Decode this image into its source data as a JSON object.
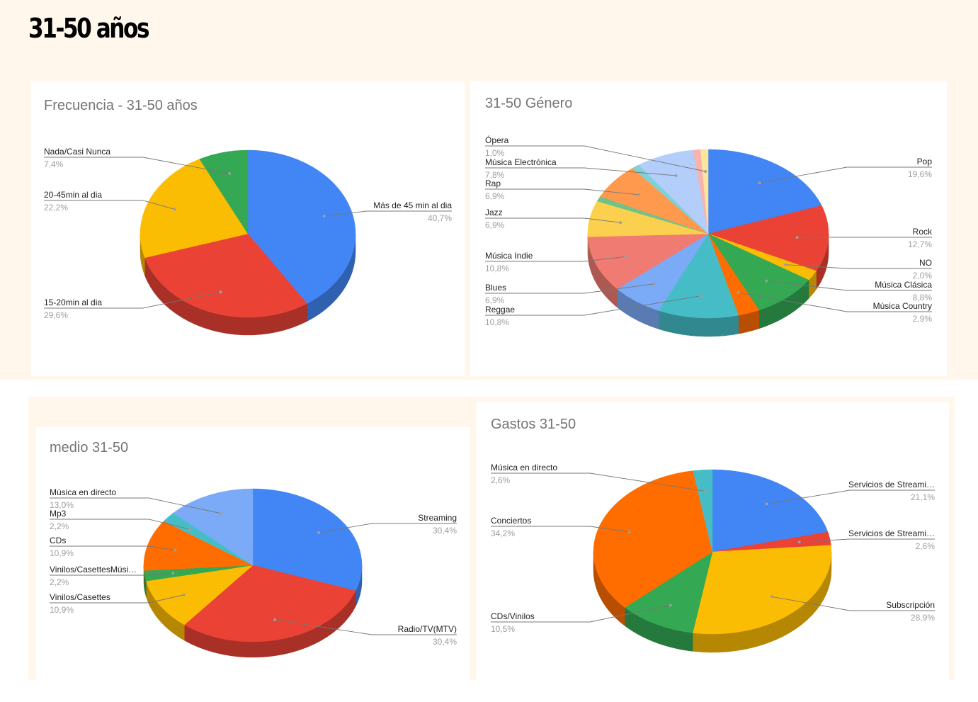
{
  "page": {
    "title": "31-50 años"
  },
  "chart_data": [
    {
      "id": "frecuencia",
      "type": "pie",
      "title": "Frecuencia - 31-50 años",
      "slices": [
        {
          "label": "Más de 45 min al dia",
          "value": 40.7,
          "pct_text": "40,7%",
          "color": "#4285f4",
          "side": "right"
        },
        {
          "label": "15-20min al dia",
          "value": 29.6,
          "pct_text": "29,6%",
          "color": "#ea4335",
          "side": "left"
        },
        {
          "label": "20-45min al dia",
          "value": 22.2,
          "pct_text": "22,2%",
          "color": "#fbbc04",
          "side": "left"
        },
        {
          "label": "Nada/Casi Nunca",
          "value": 7.4,
          "pct_text": "7,4%",
          "color": "#34a853",
          "side": "left"
        }
      ]
    },
    {
      "id": "genero",
      "type": "pie",
      "title": "31-50 Género",
      "slices": [
        {
          "label": "Pop",
          "value": 19.6,
          "pct_text": "19,6%",
          "color": "#4285f4",
          "side": "right"
        },
        {
          "label": "Rock",
          "value": 12.7,
          "pct_text": "12,7%",
          "color": "#ea4335",
          "side": "right"
        },
        {
          "label": "NO",
          "value": 2.0,
          "pct_text": "2,0%",
          "color": "#fbbc04",
          "side": "right"
        },
        {
          "label": "Música Clásica",
          "value": 8.8,
          "pct_text": "8,8%",
          "color": "#34a853",
          "side": "right"
        },
        {
          "label": "Música Country",
          "value": 2.9,
          "pct_text": "2,9%",
          "color": "#ff6d01",
          "side": "right"
        },
        {
          "label": "Reggae",
          "value": 10.8,
          "pct_text": "10,8%",
          "color": "#46bdc6",
          "side": "left"
        },
        {
          "label": "Blues",
          "value": 6.9,
          "pct_text": "6,9%",
          "color": "#7baaf7",
          "side": "left"
        },
        {
          "label": "Música Indie",
          "value": 10.8,
          "pct_text": "10,8%",
          "color": "#f07b72",
          "side": "left"
        },
        {
          "label": "Jazz",
          "value": 6.9,
          "pct_text": "6,9%",
          "color": "#fcd04f",
          "side": "left"
        },
        {
          "label": "",
          "value": 1.0,
          "pct_text": "",
          "color": "#71c287",
          "side": "none"
        },
        {
          "label": "Rap",
          "value": 6.9,
          "pct_text": "6,9%",
          "color": "#ff994d",
          "side": "left"
        },
        {
          "label": "",
          "value": 1.0,
          "pct_text": "",
          "color": "#7ed1d7",
          "side": "none"
        },
        {
          "label": "Música Electrónica",
          "value": 7.8,
          "pct_text": "7,8%",
          "color": "#b3cefb",
          "side": "left"
        },
        {
          "label": "",
          "value": 1.0,
          "pct_text": "",
          "color": "#f7b4ae",
          "side": "none"
        },
        {
          "label": "Ópera",
          "value": 1.0,
          "pct_text": "1,0%",
          "color": "#fde49b",
          "side": "left"
        }
      ]
    },
    {
      "id": "medio",
      "type": "pie",
      "title": "medio 31-50",
      "slices": [
        {
          "label": "Streaming",
          "value": 30.4,
          "pct_text": "30,4%",
          "color": "#4285f4",
          "side": "right"
        },
        {
          "label": "Radio/TV(MTV)",
          "value": 30.4,
          "pct_text": "30,4%",
          "color": "#ea4335",
          "side": "right"
        },
        {
          "label": "Vinilos/Casettes",
          "value": 10.9,
          "pct_text": "10,9%",
          "color": "#fbbc04",
          "side": "left"
        },
        {
          "label": "Vinilos/CasettesMúsi…",
          "value": 2.2,
          "pct_text": "2,2%",
          "color": "#34a853",
          "side": "left"
        },
        {
          "label": "CDs",
          "value": 10.9,
          "pct_text": "10,9%",
          "color": "#ff6d01",
          "side": "left"
        },
        {
          "label": "Mp3",
          "value": 2.2,
          "pct_text": "2,2%",
          "color": "#46bdc6",
          "side": "left"
        },
        {
          "label": "Música en directo",
          "value": 13.0,
          "pct_text": "13,0%",
          "color": "#7baaf7",
          "side": "left"
        }
      ]
    },
    {
      "id": "gastos",
      "type": "pie",
      "title": "Gastos 31-50",
      "slices": [
        {
          "label": "Servicios de Streami…",
          "value": 21.1,
          "pct_text": "21,1%",
          "color": "#4285f4",
          "side": "right"
        },
        {
          "label": "Servicios de Streami…",
          "value": 2.6,
          "pct_text": "2,6%",
          "color": "#ea4335",
          "side": "right"
        },
        {
          "label": "Subscripción",
          "value": 28.9,
          "pct_text": "28,9%",
          "color": "#fbbc04",
          "side": "right"
        },
        {
          "label": "CDs/Vinilos",
          "value": 10.5,
          "pct_text": "10,5%",
          "color": "#34a853",
          "side": "left"
        },
        {
          "label": "Conciertos",
          "value": 34.2,
          "pct_text": "34,2%",
          "color": "#ff6d01",
          "side": "left"
        },
        {
          "label": "Música en directo",
          "value": 2.6,
          "pct_text": "2,6%",
          "color": "#46bdc6",
          "side": "left"
        }
      ]
    }
  ]
}
